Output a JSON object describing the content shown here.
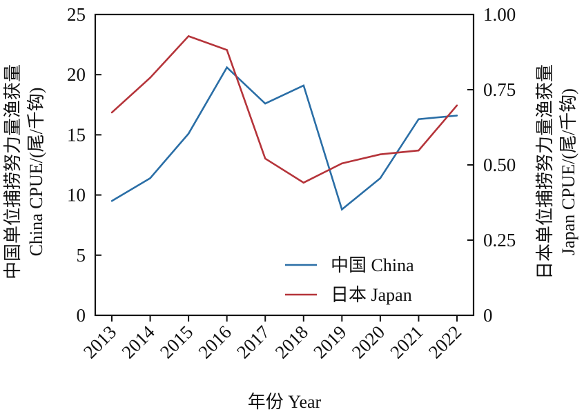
{
  "chart_data": {
    "type": "line",
    "categories": [
      "2013",
      "2014",
      "2015",
      "2016",
      "2017",
      "2018",
      "2019",
      "2020",
      "2021",
      "2022"
    ],
    "series": [
      {
        "name": "中国 China",
        "axis": "left",
        "color": "#2a6ea6",
        "values": [
          9.5,
          11.4,
          15.1,
          20.6,
          17.6,
          19.1,
          8.8,
          11.4,
          16.3,
          16.6
        ]
      },
      {
        "name": "日本 Japan",
        "axis": "right",
        "color": "#b5343a",
        "values": [
          0.674,
          0.79,
          0.928,
          0.882,
          0.521,
          0.441,
          0.505,
          0.535,
          0.548,
          0.698
        ]
      }
    ],
    "xlabel": "年份 Year",
    "ylabel_left_line1": "中国单位捕捞努力量渔获量",
    "ylabel_left_line2": "China CPUE/(尾/千钩)",
    "ylabel_right_line1": "日本单位捕捞努力量渔获量",
    "ylabel_right_line2": "Japan CPUE/(尾/千钩)",
    "ylim_left": [
      0,
      25
    ],
    "yticks_left": [
      "0",
      "5",
      "10",
      "15",
      "20",
      "25"
    ],
    "ylim_right": [
      0,
      1.0
    ],
    "yticks_right": [
      "0",
      "0.25",
      "0.50",
      "0.75",
      "1.00"
    ],
    "grid": false,
    "legend_position": "bottom-right"
  }
}
